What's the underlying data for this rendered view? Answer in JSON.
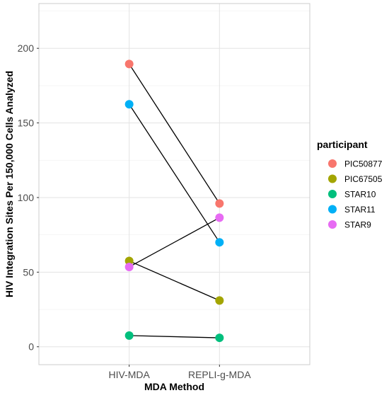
{
  "chart_data": {
    "type": "scatter",
    "title": "",
    "xlabel": "MDA Method",
    "ylabel": "HIV Integration Sites Per 150,000 Cells Analyzed",
    "categories": [
      "HIV-MDA",
      "REPLI-g-MDA"
    ],
    "ylim": [
      -12,
      230
    ],
    "yticks": [
      0,
      50,
      100,
      150,
      200
    ],
    "grid": true,
    "legend": {
      "title": "participant",
      "placement": "right"
    },
    "series": [
      {
        "name": "PIC50877",
        "color": "#F8766D",
        "values": [
          189.5,
          96
        ]
      },
      {
        "name": "PIC67505",
        "color": "#A3A500",
        "values": [
          57.5,
          31
        ]
      },
      {
        "name": "STAR10",
        "color": "#00BF7D",
        "values": [
          7.5,
          6
        ]
      },
      {
        "name": "STAR11",
        "color": "#00B0F6",
        "values": [
          162.5,
          70
        ]
      },
      {
        "name": "STAR9",
        "color": "#E76BF3",
        "values": [
          53.5,
          86.5
        ]
      }
    ]
  }
}
